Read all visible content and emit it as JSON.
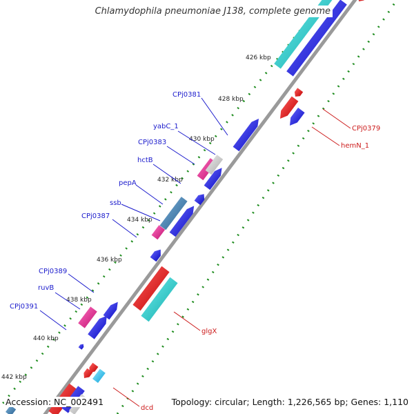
{
  "title": "Chlamydophila pneumoniae J138, complete genome",
  "footer": {
    "accession": "Accession: NC_002491",
    "summary": "Topology: circular; Length: 1,226,565 bp; Genes: 1,110"
  },
  "colors": {
    "backbone": "#8c8c8c",
    "tick_dots": "#1e8c1e",
    "forward_label": "#1a1acc",
    "reverse_label": "#cc1a1a",
    "blue_gene": "#1010dd",
    "red_gene": "#e01010",
    "cyan_gene": "#18c8c8",
    "magenta_gene": "#e0208c",
    "steel_gene": "#3f7fb0",
    "gray_gene": "#c8c8c8",
    "light_cyan_gene": "#20c8f0"
  },
  "scale_labels": [
    "426 kbp",
    "428 kbp",
    "430 kbp",
    "432 kbp",
    "434 kbp",
    "436 kbp",
    "438 kbp",
    "440 kbp",
    "442 kbp"
  ],
  "forward_labels": [
    "CPj0381",
    "yabC_1",
    "CPj0383",
    "hctB",
    "pepA",
    "ssb",
    "CPj0387",
    "CPj0389",
    "ruvB",
    "CPj0391"
  ],
  "reverse_labels": [
    "CPj0379",
    "hemN_1",
    "glgX",
    "dcd"
  ]
}
